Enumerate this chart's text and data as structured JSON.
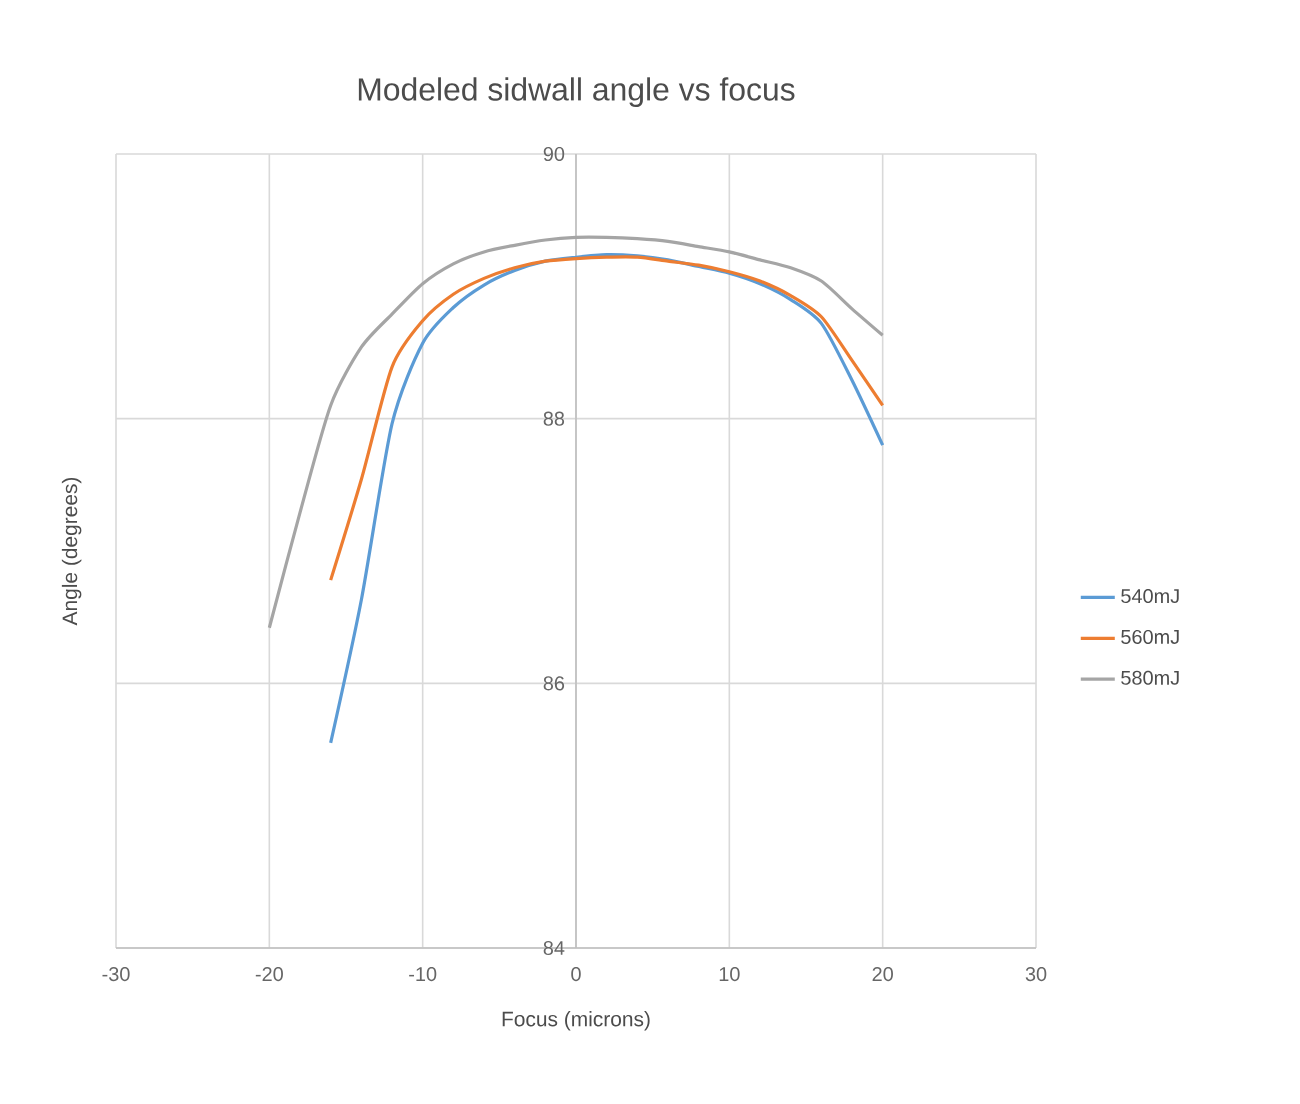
{
  "chart_data": {
    "type": "line",
    "title": "Modeled sidwall angle vs focus",
    "xlabel": "Focus (microns)",
    "ylabel": "Angle (degrees)",
    "x": [
      -20,
      -18,
      -16,
      -14,
      -12,
      -10,
      -8,
      -6,
      -4,
      -2,
      0,
      2,
      4,
      6,
      8,
      10,
      12,
      14,
      16,
      18,
      20
    ],
    "series": [
      {
        "name": "540mJ",
        "color": "#5b9bd5",
        "values": [
          null,
          null,
          85.55,
          86.63,
          87.96,
          88.57,
          88.84,
          89.01,
          89.12,
          89.19,
          89.22,
          89.24,
          89.23,
          89.2,
          89.15,
          89.1,
          89.02,
          88.9,
          88.72,
          88.29,
          87.8
        ]
      },
      {
        "name": "560mJ",
        "color": "#ed7d31",
        "values": [
          null,
          null,
          86.78,
          87.54,
          88.39,
          88.74,
          88.94,
          89.06,
          89.14,
          89.19,
          89.21,
          89.22,
          89.22,
          89.19,
          89.16,
          89.11,
          89.04,
          88.93,
          88.77,
          88.44,
          88.1
        ]
      },
      {
        "name": "580mJ",
        "color": "#a5a5a5",
        "values": [
          86.42,
          87.29,
          88.1,
          88.54,
          88.79,
          89.02,
          89.17,
          89.26,
          89.31,
          89.35,
          89.37,
          89.37,
          89.36,
          89.34,
          89.3,
          89.26,
          89.2,
          89.14,
          89.04,
          88.83,
          88.63
        ]
      }
    ],
    "xlim": [
      -30,
      30
    ],
    "xticks": [
      -30,
      -20,
      -10,
      0,
      10,
      20,
      30
    ],
    "ylim": [
      84,
      90
    ],
    "yticks": [
      84,
      86,
      88,
      90
    ],
    "grid": true,
    "legend": "right",
    "marker": "none",
    "line_style": "solid"
  }
}
